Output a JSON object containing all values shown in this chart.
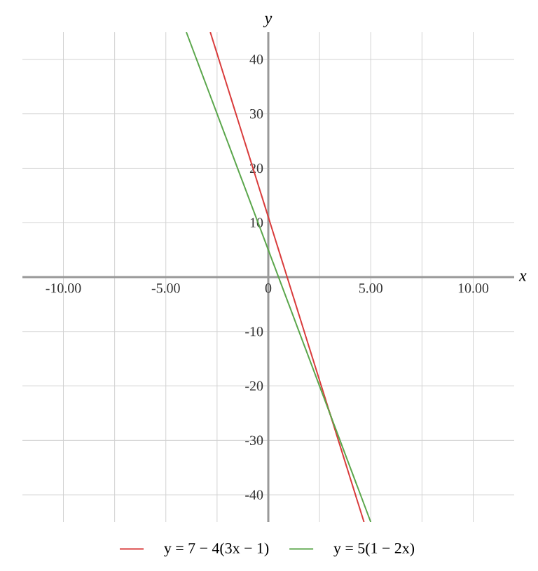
{
  "chart_data": {
    "type": "line",
    "xlabel": "x",
    "ylabel": "y",
    "xlim": [
      -12,
      12
    ],
    "ylim": [
      -45,
      45
    ],
    "xticks": [
      {
        "value": -10,
        "label": "-10.00"
      },
      {
        "value": -7.5,
        "label": null
      },
      {
        "value": -5,
        "label": "-5.00"
      },
      {
        "value": -2.5,
        "label": null
      },
      0,
      {
        "value": 2.5,
        "label": null
      },
      {
        "value": 5,
        "label": "5.00"
      },
      {
        "value": 7.5,
        "label": null
      },
      {
        "value": 10,
        "label": "10.00"
      }
    ],
    "yticks": [
      -40,
      -30,
      -20,
      -10,
      10,
      20,
      30,
      40
    ],
    "grid": true,
    "legend": "bottom",
    "series": [
      {
        "name": "y = 7 − 4(3x − 1)",
        "color": "#d93b3b",
        "x": [
          -2.83,
          4.67
        ],
        "values": [
          45,
          -45
        ]
      },
      {
        "name": "y = 5(1 − 2x)",
        "color": "#5aa64b",
        "x": [
          -4,
          5
        ],
        "values": [
          45,
          -45
        ]
      }
    ]
  }
}
